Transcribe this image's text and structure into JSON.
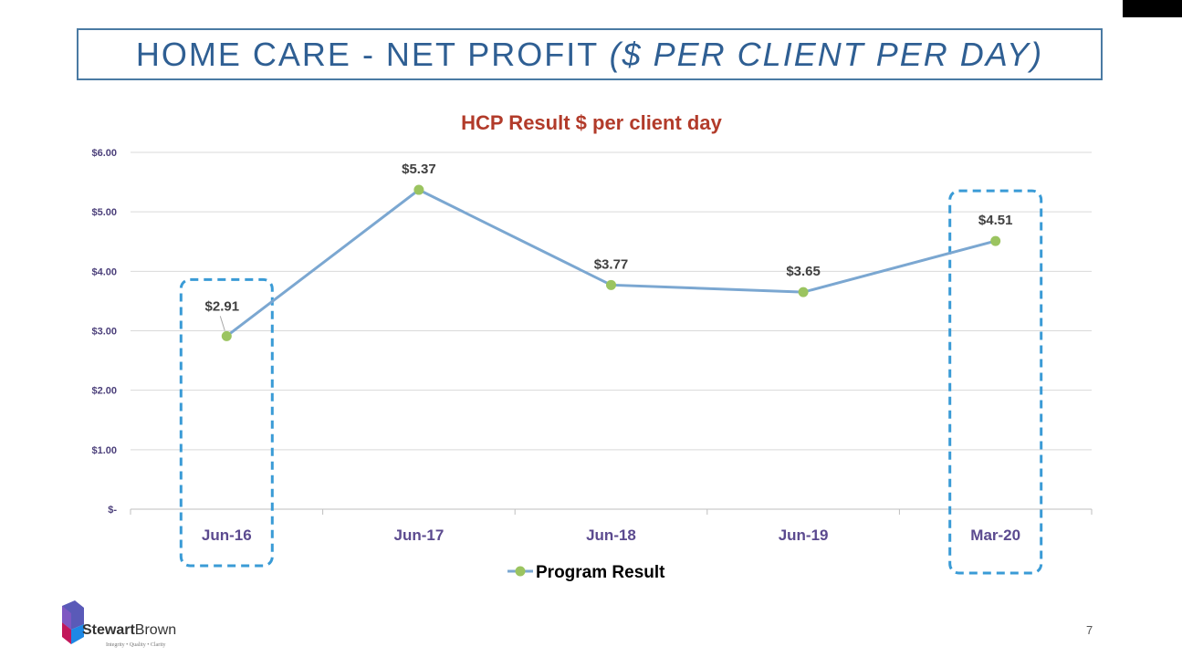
{
  "slide": {
    "title_main": "HOME CARE - NET PROFIT ",
    "title_italic": "($ PER CLIENT PER DAY)",
    "page_number": "7"
  },
  "logo": {
    "brand_bold": "Stewart",
    "brand_light": "Brown",
    "tagline": "Integrity • Quality • Clarity"
  },
  "chart_data": {
    "type": "line",
    "title": "HCP Result $ per client day",
    "categories": [
      "Jun-16",
      "Jun-17",
      "Jun-18",
      "Jun-19",
      "Mar-20"
    ],
    "series": [
      {
        "name": "Program Result",
        "values": [
          2.91,
          5.37,
          3.77,
          3.65,
          4.51
        ],
        "data_labels": [
          "$2.91",
          "$5.37",
          "$3.77",
          "$3.65",
          "$4.51"
        ]
      }
    ],
    "y_ticks": [
      0,
      1,
      2,
      3,
      4,
      5,
      6
    ],
    "y_tick_labels": [
      "$-",
      "$1.00",
      "$2.00",
      "$3.00",
      "$4.00",
      "$5.00",
      "$6.00"
    ],
    "ylim": [
      0,
      6
    ],
    "xlabel": "",
    "ylabel": "",
    "grid": true,
    "legend": "bottom-center",
    "highlighted_categories": [
      "Jun-16",
      "Mar-20"
    ],
    "colors": {
      "line": "#7ba7d1",
      "marker": "#9bc460",
      "highlight_box": "#3a9bd6",
      "grid": "#d9d9d9"
    }
  }
}
